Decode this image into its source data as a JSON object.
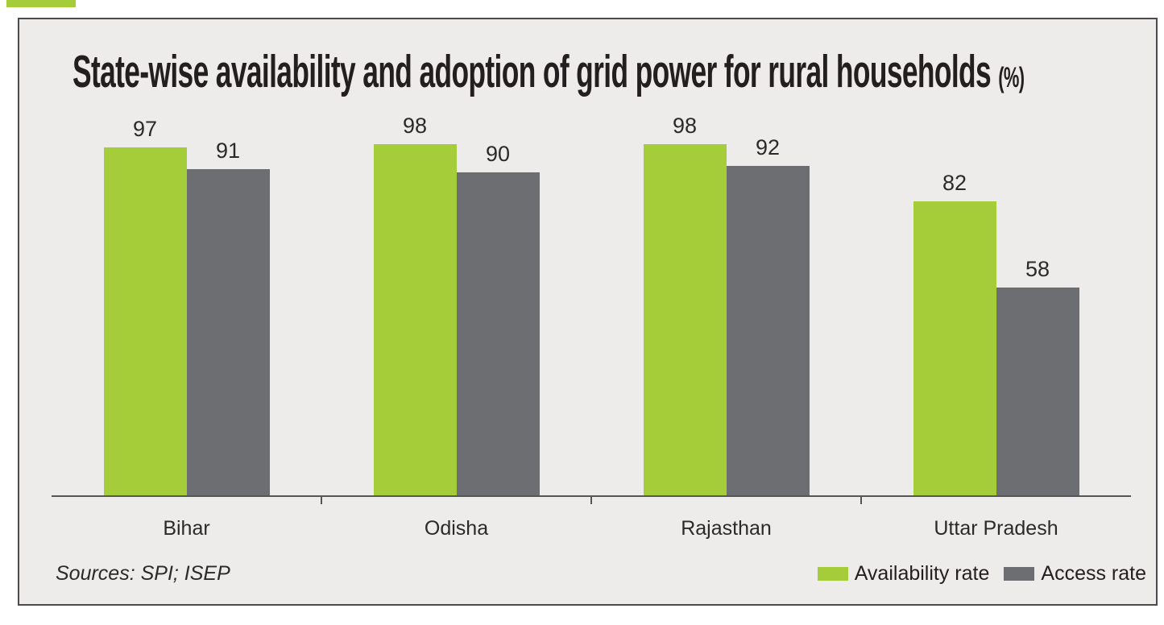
{
  "chart_data": {
    "type": "bar",
    "title": "State-wise availability and adoption of grid power for rural households",
    "title_suffix": "(%)",
    "categories": [
      "Bihar",
      "Odisha",
      "Rajasthan",
      "Uttar Pradesh"
    ],
    "series": [
      {
        "name": "Availability rate",
        "color": "#a4cd39",
        "values": [
          97,
          98,
          98,
          82
        ]
      },
      {
        "name": "Access rate",
        "color": "#6d6e71",
        "values": [
          91,
          90,
          92,
          58
        ]
      }
    ],
    "ylim": [
      0,
      100
    ],
    "grid": false,
    "legend_position": "bottom-right",
    "source_note": "Sources: SPI; ISEP"
  },
  "colors": {
    "page_background": "#ffffff",
    "chart_background": "#edecea",
    "chart_border": "#4b4b4d",
    "axis": "#565658",
    "text": "#231f20",
    "accent_green": "#a4cd39"
  }
}
